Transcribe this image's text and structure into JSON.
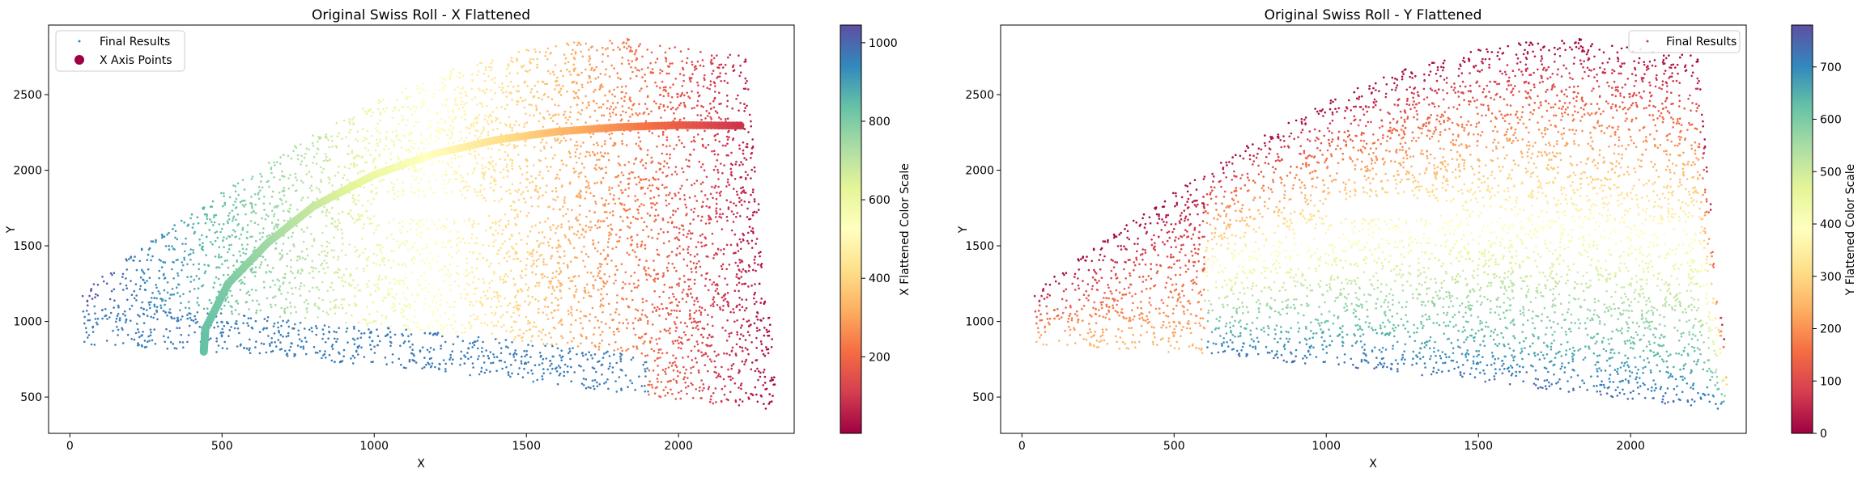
{
  "chart_data": [
    {
      "type": "scatter",
      "title": "Original Swiss Roll - X Flattened",
      "xlabel": "X",
      "ylabel": "Y",
      "xlim": [
        -70,
        2380
      ],
      "ylim": [
        260,
        2960
      ],
      "xticks": [
        0,
        500,
        1000,
        1500,
        2000
      ],
      "yticks": [
        500,
        1000,
        1500,
        2000,
        2500
      ],
      "colorbar": {
        "label": "X Flattened Color Scale",
        "range": [
          5,
          1045
        ],
        "ticks": [
          200,
          400,
          600,
          800,
          1000
        ],
        "colormap": "Spectral"
      },
      "legend": {
        "position": "top-left",
        "entries": [
          "Final Results",
          "X Axis Points"
        ]
      },
      "color_encoding": "x_flattened",
      "series": [
        {
          "name": "Final Results",
          "description_region": {
            "bottom_left": [
              40,
              840
            ],
            "bottom_right": [
              2330,
              400
            ],
            "top_left_apex": [
              40,
              1200
            ],
            "top_right": [
              2220,
              2750
            ],
            "top_peak": [
              1800,
              2870
            ]
          },
          "color_value_range": [
            5,
            1045
          ]
        },
        {
          "name": "X Axis Points",
          "curve": [
            [
              440,
              800
            ],
            [
              445,
              950
            ],
            [
              520,
              1250
            ],
            [
              650,
              1520
            ],
            [
              800,
              1760
            ],
            [
              1000,
              1970
            ],
            [
              1200,
              2110
            ],
            [
              1400,
              2200
            ],
            [
              1600,
              2255
            ],
            [
              1800,
              2285
            ],
            [
              2000,
              2298
            ],
            [
              2215,
              2295
            ]
          ]
        }
      ]
    },
    {
      "type": "scatter",
      "title": "Original Swiss Roll - Y Flattened",
      "xlabel": "X",
      "ylabel": "Y",
      "xlim": [
        -70,
        2380
      ],
      "ylim": [
        260,
        2960
      ],
      "xticks": [
        0,
        500,
        1000,
        1500,
        2000
      ],
      "yticks": [
        500,
        1000,
        1500,
        2000,
        2500
      ],
      "colorbar": {
        "label": "Y Flattened Color Scale",
        "range": [
          0,
          780
        ],
        "ticks": [
          0,
          100,
          200,
          300,
          400,
          500,
          600,
          700
        ],
        "colormap": "Spectral"
      },
      "legend": {
        "position": "top-right",
        "entries": [
          "Final Results"
        ]
      },
      "color_encoding": "y_flattened",
      "series": [
        {
          "name": "Final Results",
          "color_value_range": [
            0,
            780
          ]
        }
      ]
    }
  ]
}
